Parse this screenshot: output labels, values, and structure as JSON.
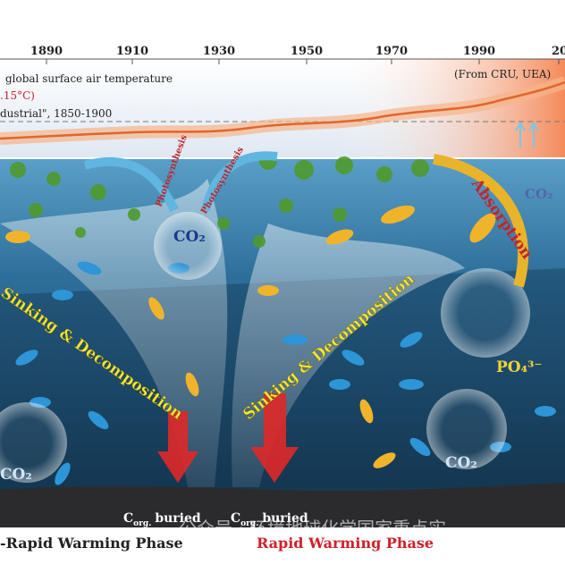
{
  "timeline": {
    "years": [
      "1890",
      "1910",
      "1930",
      "1950",
      "1970",
      "1990",
      "20"
    ]
  },
  "temperature": {
    "title": "global surface air temperature",
    "anomaly": ".15°C)",
    "baseline": "dustrial\", 1850-1900",
    "source": "(From CRU, UEA)"
  },
  "processes": {
    "photosynthesis_left": "Photosynthesis",
    "photosynthesis_right": "Photosynthesis",
    "absorption": "Absorption",
    "sinking_left": "Sinking & Decomposition",
    "sinking_right": "Sinking & Decomposition"
  },
  "molecules": {
    "co2_top": "CO₂",
    "co2_right": "CO₂",
    "co2_left_bottom": "CO₂",
    "co2_right_bottom": "CO₂",
    "phosphate": "PO₄³⁻"
  },
  "burial": {
    "left": {
      "main": "C",
      "sub": "org.",
      "rest": "buried"
    },
    "right": {
      "main": "C",
      "sub": "org.",
      "rest": "buried"
    }
  },
  "phases": {
    "left": "-Rapid Warming Phase",
    "right": "Rapid Warming Phase"
  },
  "watermark": "公众号 · 环境地球化学国家重点实"
}
